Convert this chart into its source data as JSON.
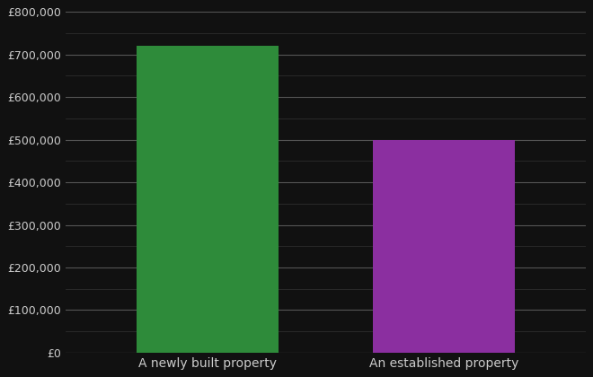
{
  "categories": [
    "A newly built property",
    "An established property"
  ],
  "values": [
    720000,
    500000
  ],
  "bar_colors": [
    "#2e8b3a",
    "#8b2fa0"
  ],
  "background_color": "#111111",
  "text_color": "#cccccc",
  "major_grid_color": "#555555",
  "minor_grid_color": "#333333",
  "ylim": [
    0,
    800000
  ],
  "ytick_major_step": 100000,
  "ytick_minor_step": 50000,
  "bar_width": 0.6,
  "xlabel": "",
  "ylabel": "",
  "tick_fontsize": 9,
  "xlabel_fontsize": 10
}
